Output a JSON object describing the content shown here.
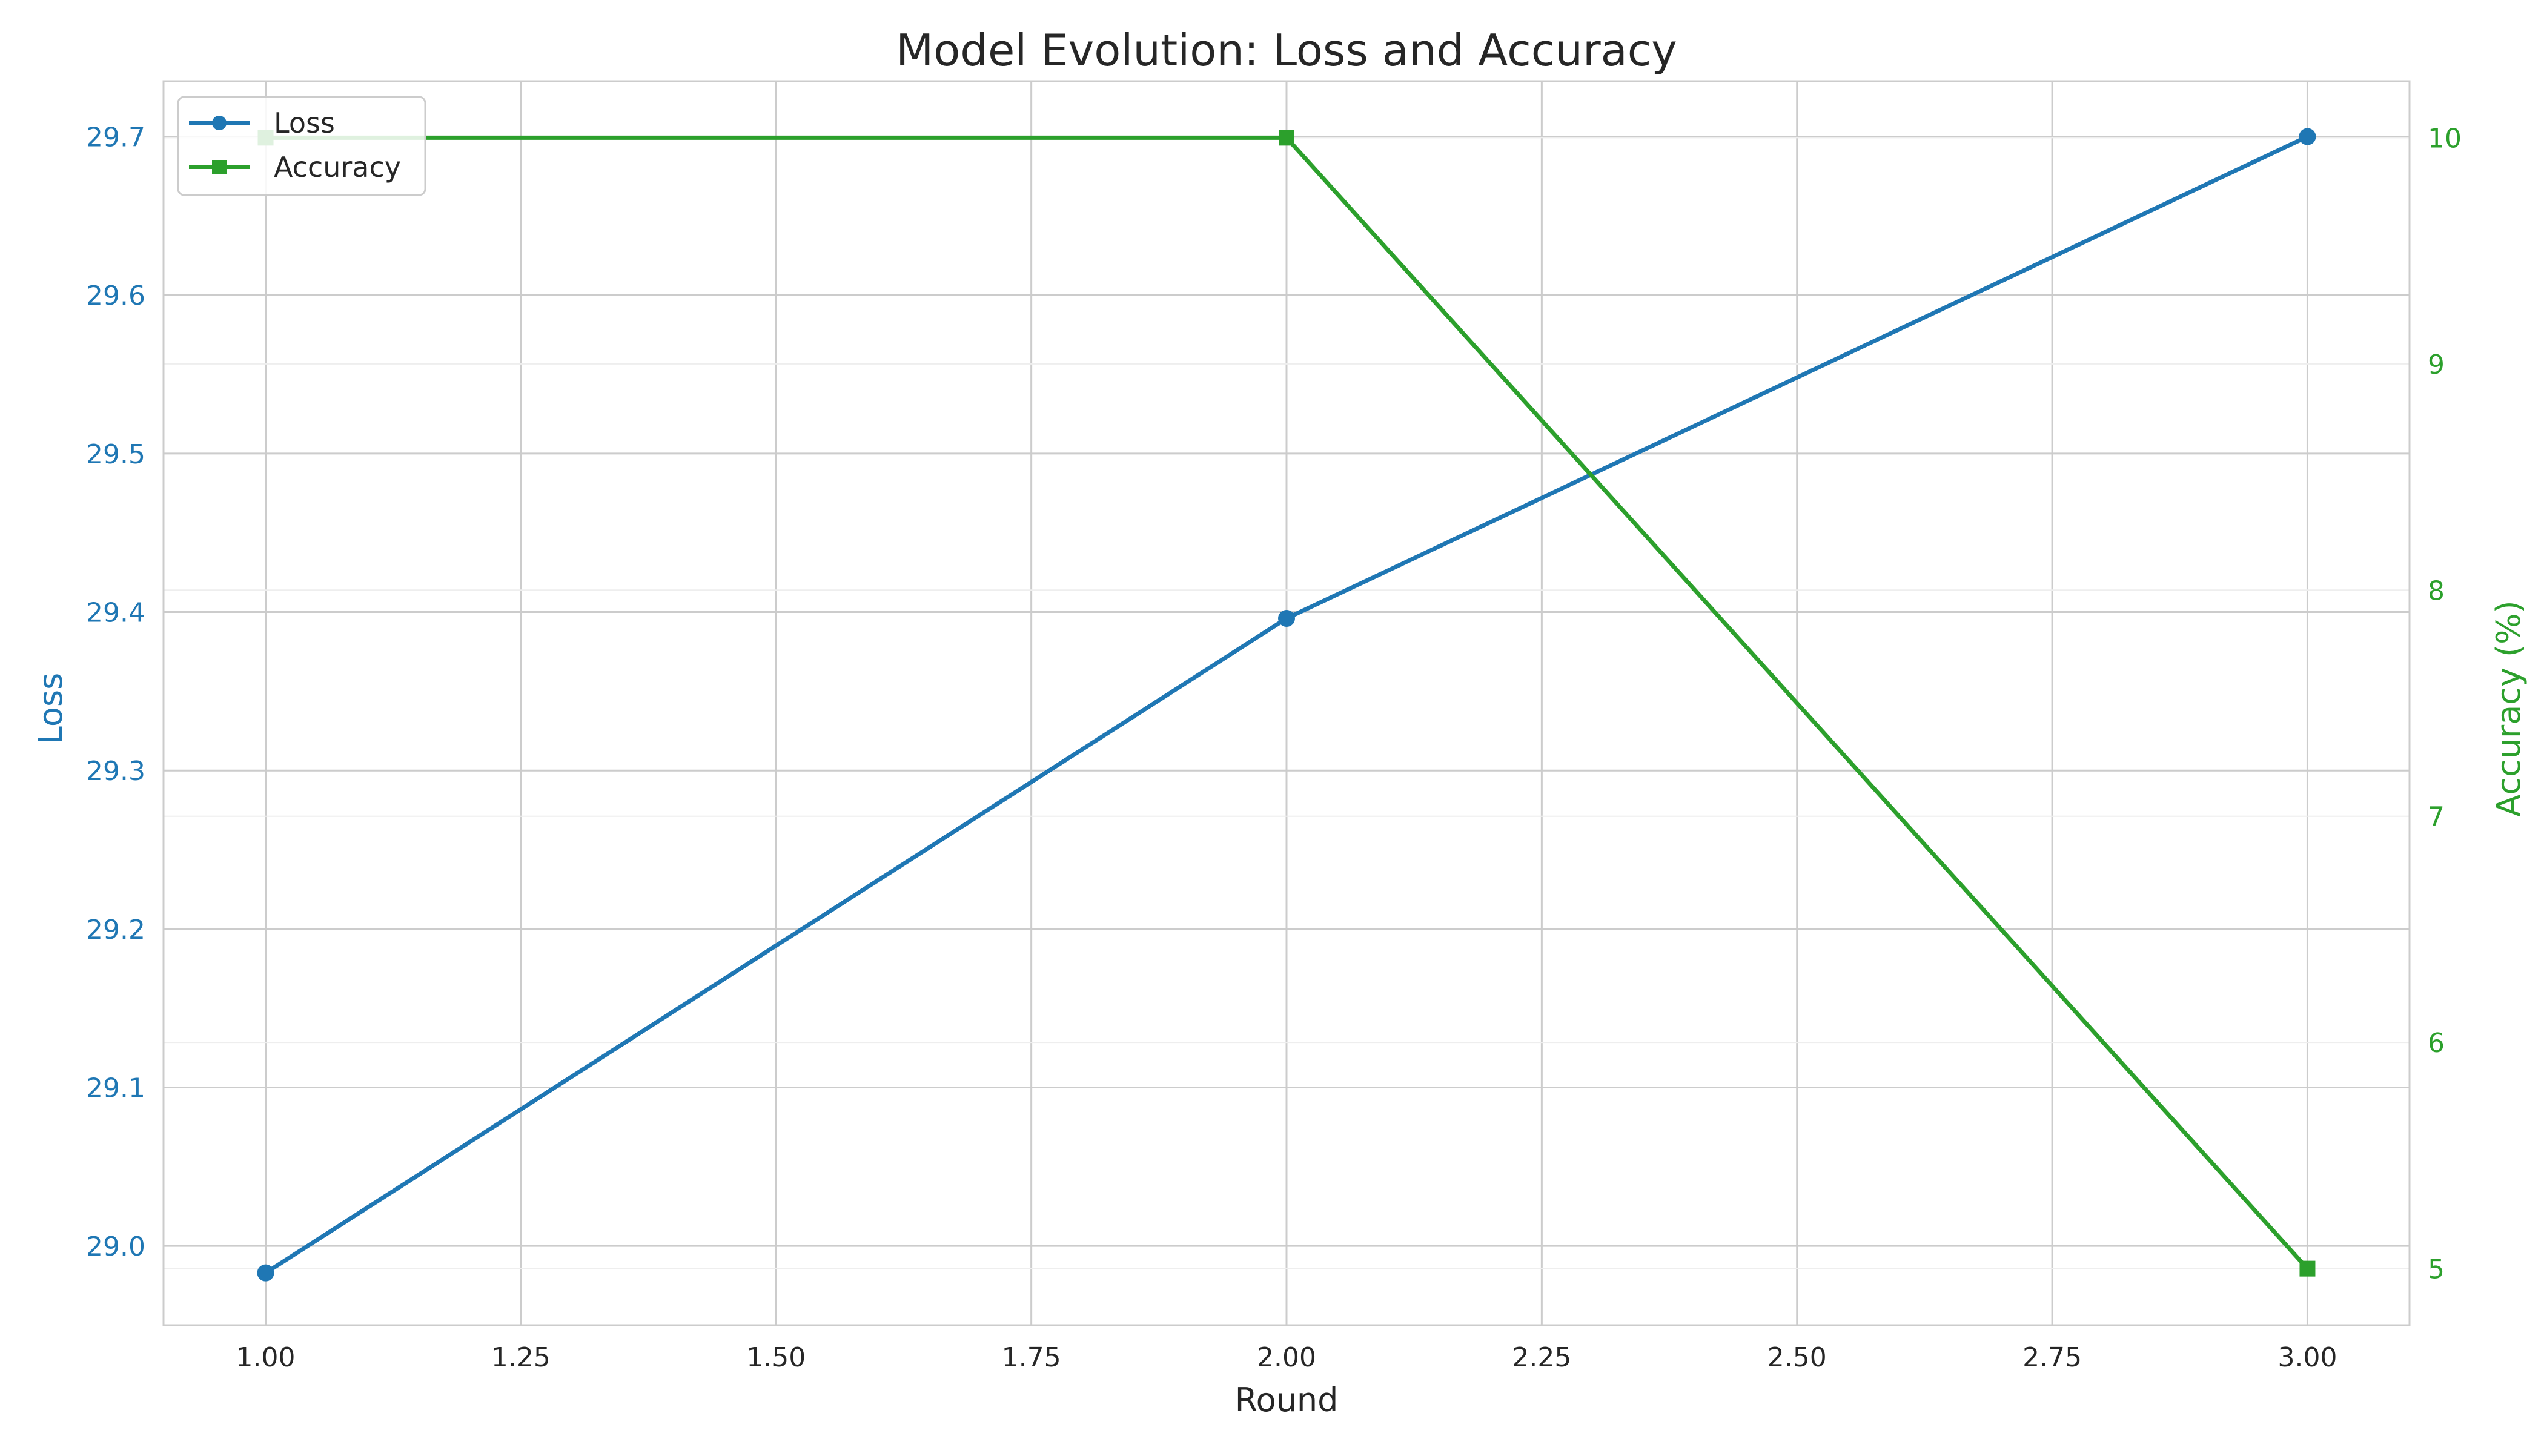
{
  "chart_data": {
    "type": "line",
    "title": "Model Evolution: Loss and Accuracy",
    "xlabel": "Round",
    "ylabel_left": "Loss",
    "ylabel_right": "Accuracy (%)",
    "x": [
      1,
      2,
      3
    ],
    "xlim": [
      0.9,
      3.1
    ],
    "xticks": [
      1.0,
      1.25,
      1.5,
      1.75,
      2.0,
      2.25,
      2.5,
      2.75,
      3.0
    ],
    "xtick_labels": [
      "1.00",
      "1.25",
      "1.50",
      "1.75",
      "2.00",
      "2.25",
      "2.50",
      "2.75",
      "3.00"
    ],
    "ylim_left": [
      28.95,
      29.735
    ],
    "yticks_left": [
      29.0,
      29.1,
      29.2,
      29.3,
      29.4,
      29.5,
      29.6,
      29.7
    ],
    "ytick_labels_left": [
      "29.0",
      "29.1",
      "29.2",
      "29.3",
      "29.4",
      "29.5",
      "29.6",
      "29.7"
    ],
    "ylim_right": [
      4.75,
      10.25
    ],
    "yticks_right": [
      5,
      6,
      7,
      8,
      9,
      10
    ],
    "ytick_labels_right": [
      "5",
      "6",
      "7",
      "8",
      "9",
      "10"
    ],
    "grid": true,
    "legend_position": "top-left",
    "series": [
      {
        "name": "Loss",
        "axis": "left",
        "marker": "circle",
        "color": "#1f77b4",
        "values": [
          28.983,
          29.396,
          29.7
        ]
      },
      {
        "name": "Accuracy",
        "axis": "right",
        "marker": "square",
        "color": "#2ca02c",
        "values": [
          10,
          10,
          5
        ]
      }
    ]
  }
}
